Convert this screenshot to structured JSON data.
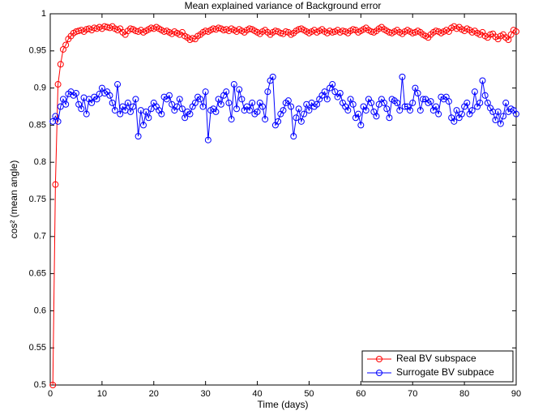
{
  "chart_data": {
    "type": "line",
    "title": "Mean explained variance of Background error",
    "xlabel": "Time (days)",
    "ylabel": "cos² (mean angle)",
    "xlim": [
      0,
      90
    ],
    "xticks": [
      0,
      10,
      20,
      30,
      40,
      50,
      60,
      70,
      80,
      90
    ],
    "ylim": [
      0.5,
      1
    ],
    "yticks": [
      0.5,
      0.55,
      0.6,
      0.65,
      0.7,
      0.75,
      0.8,
      0.85,
      0.9,
      0.95,
      1
    ],
    "grid": false,
    "legend": "lower right",
    "marker": "circle",
    "x": [
      0.5,
      1,
      1.5,
      2,
      2.5,
      3,
      3.5,
      4,
      4.5,
      5,
      5.5,
      6,
      6.5,
      7,
      7.5,
      8,
      8.5,
      9,
      9.5,
      10,
      10.5,
      11,
      11.5,
      12,
      12.5,
      13,
      13.5,
      14,
      14.5,
      15,
      15.5,
      16,
      16.5,
      17,
      17.5,
      18,
      18.5,
      19,
      19.5,
      20,
      20.5,
      21,
      21.5,
      22,
      22.5,
      23,
      23.5,
      24,
      24.5,
      25,
      25.5,
      26,
      26.5,
      27,
      27.5,
      28,
      28.5,
      29,
      29.5,
      30,
      30.5,
      31,
      31.5,
      32,
      32.5,
      33,
      33.5,
      34,
      34.5,
      35,
      35.5,
      36,
      36.5,
      37,
      37.5,
      38,
      38.5,
      39,
      39.5,
      40,
      40.5,
      41,
      41.5,
      42,
      42.5,
      43,
      43.5,
      44,
      44.5,
      45,
      45.5,
      46,
      46.5,
      47,
      47.5,
      48,
      48.5,
      49,
      49.5,
      50,
      50.5,
      51,
      51.5,
      52,
      52.5,
      53,
      53.5,
      54,
      54.5,
      55,
      55.5,
      56,
      56.5,
      57,
      57.5,
      58,
      58.5,
      59,
      59.5,
      60,
      60.5,
      61,
      61.5,
      62,
      62.5,
      63,
      63.5,
      64,
      64.5,
      65,
      65.5,
      66,
      66.5,
      67,
      67.5,
      68,
      68.5,
      69,
      69.5,
      70,
      70.5,
      71,
      71.5,
      72,
      72.5,
      73,
      73.5,
      74,
      74.5,
      75,
      75.5,
      76,
      76.5,
      77,
      77.5,
      78,
      78.5,
      79,
      79.5,
      80,
      80.5,
      81,
      81.5,
      82,
      82.5,
      83,
      83.5,
      84,
      84.5,
      85,
      85.5,
      86,
      86.5,
      87,
      87.5,
      88,
      88.5,
      89,
      89.5,
      90
    ],
    "series": [
      {
        "name": "Real BV subspace",
        "color": "#ff0000",
        "values": [
          0.5,
          0.77,
          0.905,
          0.932,
          0.952,
          0.958,
          0.966,
          0.97,
          0.974,
          0.976,
          0.977,
          0.978,
          0.976,
          0.979,
          0.98,
          0.978,
          0.981,
          0.98,
          0.982,
          0.98,
          0.983,
          0.982,
          0.981,
          0.983,
          0.98,
          0.978,
          0.98,
          0.975,
          0.972,
          0.977,
          0.98,
          0.979,
          0.977,
          0.976,
          0.978,
          0.975,
          0.977,
          0.979,
          0.981,
          0.98,
          0.982,
          0.98,
          0.978,
          0.976,
          0.977,
          0.975,
          0.973,
          0.976,
          0.974,
          0.972,
          0.975,
          0.97,
          0.968,
          0.965,
          0.967,
          0.966,
          0.97,
          0.972,
          0.975,
          0.977,
          0.976,
          0.978,
          0.98,
          0.979,
          0.981,
          0.98,
          0.978,
          0.979,
          0.977,
          0.98,
          0.978,
          0.976,
          0.979,
          0.977,
          0.975,
          0.978,
          0.98,
          0.979,
          0.977,
          0.975,
          0.973,
          0.976,
          0.978,
          0.975,
          0.972,
          0.975,
          0.977,
          0.976,
          0.974,
          0.973,
          0.976,
          0.975,
          0.972,
          0.974,
          0.977,
          0.979,
          0.98,
          0.978,
          0.976,
          0.974,
          0.976,
          0.978,
          0.975,
          0.977,
          0.979,
          0.976,
          0.974,
          0.977,
          0.975,
          0.976,
          0.978,
          0.975,
          0.977,
          0.976,
          0.974,
          0.977,
          0.979,
          0.978,
          0.975,
          0.977,
          0.979,
          0.981,
          0.978,
          0.976,
          0.975,
          0.977,
          0.98,
          0.982,
          0.979,
          0.977,
          0.975,
          0.974,
          0.976,
          0.978,
          0.975,
          0.973,
          0.976,
          0.978,
          0.976,
          0.974,
          0.975,
          0.977,
          0.975,
          0.972,
          0.97,
          0.968,
          0.972,
          0.975,
          0.977,
          0.976,
          0.974,
          0.976,
          0.978,
          0.976,
          0.981,
          0.983,
          0.98,
          0.982,
          0.979,
          0.977,
          0.98,
          0.978,
          0.975,
          0.977,
          0.974,
          0.972,
          0.975,
          0.97,
          0.968,
          0.972,
          0.973,
          0.969,
          0.966,
          0.97,
          0.972,
          0.968,
          0.965,
          0.972,
          0.978,
          0.976
        ]
      },
      {
        "name": "Surrogate BV subpace",
        "color": "#0000ff",
        "values": [
          0.855,
          0.862,
          0.855,
          0.875,
          0.885,
          0.878,
          0.892,
          0.895,
          0.89,
          0.893,
          0.878,
          0.872,
          0.887,
          0.865,
          0.885,
          0.88,
          0.888,
          0.885,
          0.892,
          0.9,
          0.893,
          0.895,
          0.89,
          0.88,
          0.87,
          0.905,
          0.865,
          0.875,
          0.87,
          0.88,
          0.868,
          0.875,
          0.885,
          0.835,
          0.87,
          0.85,
          0.868,
          0.86,
          0.872,
          0.88,
          0.875,
          0.87,
          0.865,
          0.888,
          0.885,
          0.89,
          0.878,
          0.87,
          0.875,
          0.885,
          0.872,
          0.86,
          0.868,
          0.865,
          0.875,
          0.88,
          0.888,
          0.885,
          0.875,
          0.895,
          0.83,
          0.87,
          0.872,
          0.868,
          0.885,
          0.878,
          0.89,
          0.895,
          0.88,
          0.858,
          0.905,
          0.872,
          0.898,
          0.885,
          0.87,
          0.875,
          0.87,
          0.88,
          0.865,
          0.868,
          0.88,
          0.875,
          0.858,
          0.895,
          0.91,
          0.915,
          0.85,
          0.855,
          0.865,
          0.87,
          0.88,
          0.883,
          0.875,
          0.835,
          0.86,
          0.872,
          0.855,
          0.865,
          0.878,
          0.87,
          0.88,
          0.875,
          0.878,
          0.885,
          0.89,
          0.895,
          0.885,
          0.9,
          0.905,
          0.895,
          0.888,
          0.893,
          0.88,
          0.875,
          0.87,
          0.885,
          0.878,
          0.86,
          0.865,
          0.85,
          0.875,
          0.87,
          0.885,
          0.88,
          0.868,
          0.862,
          0.878,
          0.885,
          0.88,
          0.872,
          0.86,
          0.885,
          0.883,
          0.88,
          0.87,
          0.915,
          0.875,
          0.875,
          0.87,
          0.88,
          0.9,
          0.893,
          0.87,
          0.885,
          0.885,
          0.88,
          0.882,
          0.87,
          0.875,
          0.865,
          0.888,
          0.885,
          0.888,
          0.882,
          0.86,
          0.855,
          0.87,
          0.86,
          0.865,
          0.875,
          0.88,
          0.865,
          0.87,
          0.895,
          0.875,
          0.88,
          0.91,
          0.89,
          0.88,
          0.873,
          0.868,
          0.857,
          0.868,
          0.852,
          0.862,
          0.88,
          0.868,
          0.872,
          0.87,
          0.865
        ]
      }
    ]
  }
}
